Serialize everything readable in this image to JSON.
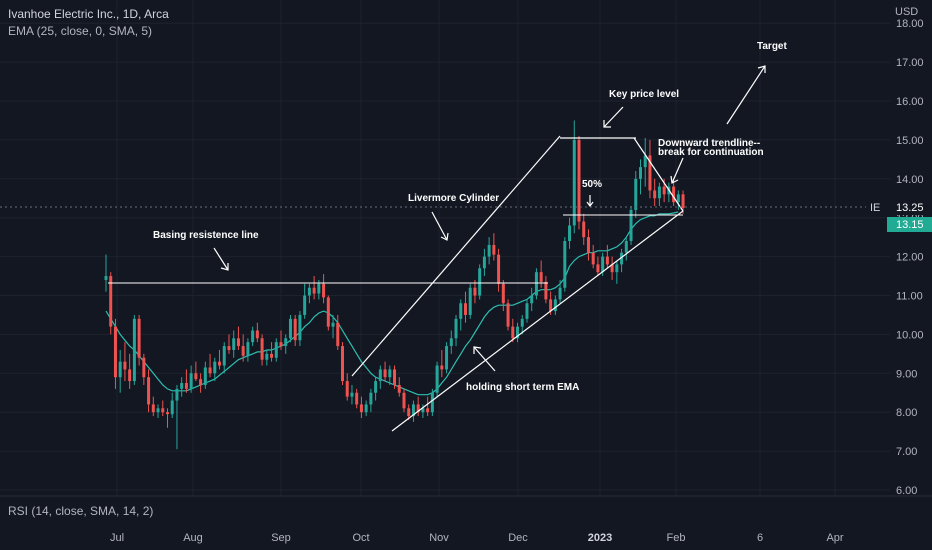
{
  "header": {
    "title": "Ivanhoe Electric Inc., 1D, Arca",
    "indicator": "EMA (25, close, 0, SMA, 5)",
    "rsi_label": "RSI (14, close, SMA, 14, 2)"
  },
  "price_axis": {
    "currency": "USD",
    "ticks": [
      "18.00",
      "17.00",
      "16.00",
      "15.00",
      "14.00",
      "13.00",
      "12.00",
      "11.00",
      "10.00",
      "9.00",
      "8.00",
      "7.00",
      "6.00"
    ],
    "symbol_tag": "IE",
    "last_price": "13.25",
    "ema_price": "13.15"
  },
  "colors": {
    "background": "#131722",
    "up": "#26a69a",
    "down": "#ef5350",
    "ema": "#2dbfb1",
    "drawings": "#ffffff",
    "grid": "#1e222d",
    "axis_text": "#b2b5be"
  },
  "chart_data": {
    "type": "candlestick",
    "symbol": "IE",
    "timeframe": "1D",
    "x_tick_labels": [
      "Jul",
      "Aug",
      "Sep",
      "Oct",
      "Nov",
      "Dec",
      "2023",
      "Feb",
      "6",
      "Apr"
    ],
    "ylim": [
      6.0,
      18.0
    ],
    "grid": true,
    "last_price": 13.25,
    "ema_value": 13.15,
    "annotations": [
      {
        "text": "Basing resistence line",
        "price_level": 11.35
      },
      {
        "text": "Livermore Cylinder"
      },
      {
        "text": "holding short term EMA"
      },
      {
        "text": "Key price level",
        "price_level": 15.05
      },
      {
        "text": "50%",
        "price_level": 13.0
      },
      {
        "text": "Downward trendline--"
      },
      {
        "text": "break for continuation"
      },
      {
        "text": "Target"
      }
    ],
    "candles": [
      {
        "o": 11.4,
        "h": 12.05,
        "l": 11.1,
        "c": 11.5
      },
      {
        "o": 11.5,
        "h": 11.6,
        "l": 10.0,
        "c": 10.2
      },
      {
        "o": 10.2,
        "h": 10.4,
        "l": 8.6,
        "c": 8.9
      },
      {
        "o": 8.9,
        "h": 9.6,
        "l": 8.5,
        "c": 9.3
      },
      {
        "o": 9.3,
        "h": 9.8,
        "l": 8.8,
        "c": 9.1
      },
      {
        "o": 9.1,
        "h": 9.5,
        "l": 8.6,
        "c": 8.8
      },
      {
        "o": 8.8,
        "h": 10.5,
        "l": 8.7,
        "c": 10.4
      },
      {
        "o": 10.4,
        "h": 10.5,
        "l": 9.2,
        "c": 9.4
      },
      {
        "o": 9.4,
        "h": 9.5,
        "l": 8.7,
        "c": 8.9
      },
      {
        "o": 8.9,
        "h": 9.1,
        "l": 8.0,
        "c": 8.2
      },
      {
        "o": 8.2,
        "h": 8.4,
        "l": 7.9,
        "c": 8.0
      },
      {
        "o": 8.0,
        "h": 8.2,
        "l": 7.85,
        "c": 8.1
      },
      {
        "o": 8.1,
        "h": 8.3,
        "l": 7.9,
        "c": 8.0
      },
      {
        "o": 8.0,
        "h": 8.1,
        "l": 7.6,
        "c": 7.95
      },
      {
        "o": 7.95,
        "h": 8.5,
        "l": 7.85,
        "c": 8.3
      },
      {
        "o": 8.3,
        "h": 8.7,
        "l": 7.05,
        "c": 8.6
      },
      {
        "o": 8.6,
        "h": 8.9,
        "l": 8.4,
        "c": 8.75
      },
      {
        "o": 8.75,
        "h": 9.1,
        "l": 8.5,
        "c": 8.6
      },
      {
        "o": 8.6,
        "h": 9.2,
        "l": 8.5,
        "c": 9.0
      },
      {
        "o": 9.0,
        "h": 9.3,
        "l": 8.8,
        "c": 8.85
      },
      {
        "o": 8.85,
        "h": 9.0,
        "l": 8.5,
        "c": 8.7
      },
      {
        "o": 8.7,
        "h": 9.3,
        "l": 8.6,
        "c": 9.15
      },
      {
        "o": 9.15,
        "h": 9.5,
        "l": 8.9,
        "c": 9.0
      },
      {
        "o": 9.0,
        "h": 9.4,
        "l": 8.8,
        "c": 9.3
      },
      {
        "o": 9.3,
        "h": 9.6,
        "l": 9.1,
        "c": 9.2
      },
      {
        "o": 9.2,
        "h": 9.8,
        "l": 9.0,
        "c": 9.7
      },
      {
        "o": 9.7,
        "h": 10.0,
        "l": 9.5,
        "c": 9.6
      },
      {
        "o": 9.6,
        "h": 10.1,
        "l": 9.4,
        "c": 9.9
      },
      {
        "o": 9.9,
        "h": 10.2,
        "l": 9.6,
        "c": 9.7
      },
      {
        "o": 9.7,
        "h": 10.0,
        "l": 9.3,
        "c": 9.45
      },
      {
        "o": 9.45,
        "h": 9.9,
        "l": 9.3,
        "c": 9.8
      },
      {
        "o": 9.8,
        "h": 10.2,
        "l": 9.7,
        "c": 10.1
      },
      {
        "o": 10.1,
        "h": 10.3,
        "l": 9.8,
        "c": 9.9
      },
      {
        "o": 9.9,
        "h": 10.0,
        "l": 9.2,
        "c": 9.35
      },
      {
        "o": 9.35,
        "h": 9.6,
        "l": 9.2,
        "c": 9.5
      },
      {
        "o": 9.5,
        "h": 9.8,
        "l": 9.3,
        "c": 9.4
      },
      {
        "o": 9.4,
        "h": 9.9,
        "l": 9.3,
        "c": 9.8
      },
      {
        "o": 9.8,
        "h": 10.1,
        "l": 9.6,
        "c": 9.7
      },
      {
        "o": 9.7,
        "h": 10.0,
        "l": 9.5,
        "c": 9.9
      },
      {
        "o": 9.9,
        "h": 10.5,
        "l": 9.8,
        "c": 10.4
      },
      {
        "o": 10.4,
        "h": 10.5,
        "l": 9.7,
        "c": 9.85
      },
      {
        "o": 9.85,
        "h": 10.6,
        "l": 9.7,
        "c": 10.5
      },
      {
        "o": 10.5,
        "h": 11.3,
        "l": 10.4,
        "c": 11.0
      },
      {
        "o": 11.0,
        "h": 11.3,
        "l": 10.8,
        "c": 11.2
      },
      {
        "o": 11.2,
        "h": 11.5,
        "l": 10.9,
        "c": 11.05
      },
      {
        "o": 11.05,
        "h": 11.4,
        "l": 10.9,
        "c": 11.3
      },
      {
        "o": 11.3,
        "h": 11.55,
        "l": 10.8,
        "c": 10.95
      },
      {
        "o": 10.95,
        "h": 11.0,
        "l": 10.1,
        "c": 10.2
      },
      {
        "o": 10.2,
        "h": 10.5,
        "l": 9.9,
        "c": 10.3
      },
      {
        "o": 10.3,
        "h": 10.5,
        "l": 9.6,
        "c": 9.7
      },
      {
        "o": 9.7,
        "h": 9.8,
        "l": 8.7,
        "c": 8.8
      },
      {
        "o": 8.8,
        "h": 9.0,
        "l": 8.3,
        "c": 8.4
      },
      {
        "o": 8.4,
        "h": 8.7,
        "l": 8.2,
        "c": 8.5
      },
      {
        "o": 8.5,
        "h": 8.6,
        "l": 8.1,
        "c": 8.2
      },
      {
        "o": 8.2,
        "h": 8.4,
        "l": 7.85,
        "c": 8.0
      },
      {
        "o": 8.0,
        "h": 8.3,
        "l": 7.9,
        "c": 8.2
      },
      {
        "o": 8.2,
        "h": 8.6,
        "l": 8.0,
        "c": 8.5
      },
      {
        "o": 8.5,
        "h": 8.9,
        "l": 8.3,
        "c": 8.8
      },
      {
        "o": 8.8,
        "h": 9.2,
        "l": 8.6,
        "c": 9.1
      },
      {
        "o": 9.1,
        "h": 9.3,
        "l": 8.8,
        "c": 8.9
      },
      {
        "o": 8.9,
        "h": 9.2,
        "l": 8.7,
        "c": 9.1
      },
      {
        "o": 9.1,
        "h": 9.2,
        "l": 8.6,
        "c": 8.7
      },
      {
        "o": 8.7,
        "h": 8.9,
        "l": 8.4,
        "c": 8.5
      },
      {
        "o": 8.5,
        "h": 8.6,
        "l": 8.0,
        "c": 8.1
      },
      {
        "o": 8.1,
        "h": 8.2,
        "l": 7.8,
        "c": 7.9
      },
      {
        "o": 7.9,
        "h": 8.3,
        "l": 7.75,
        "c": 8.2
      },
      {
        "o": 8.2,
        "h": 8.4,
        "l": 7.9,
        "c": 8.0
      },
      {
        "o": 8.0,
        "h": 8.2,
        "l": 7.85,
        "c": 8.1
      },
      {
        "o": 8.1,
        "h": 8.4,
        "l": 7.9,
        "c": 8.0
      },
      {
        "o": 8.0,
        "h": 8.6,
        "l": 7.9,
        "c": 8.5
      },
      {
        "o": 8.5,
        "h": 9.3,
        "l": 8.4,
        "c": 9.2
      },
      {
        "o": 9.2,
        "h": 9.6,
        "l": 8.9,
        "c": 9.1
      },
      {
        "o": 9.1,
        "h": 9.8,
        "l": 9.0,
        "c": 9.7
      },
      {
        "o": 9.7,
        "h": 10.1,
        "l": 9.5,
        "c": 9.9
      },
      {
        "o": 9.9,
        "h": 10.5,
        "l": 9.7,
        "c": 10.4
      },
      {
        "o": 10.4,
        "h": 10.9,
        "l": 10.1,
        "c": 10.8
      },
      {
        "o": 10.8,
        "h": 11.1,
        "l": 10.3,
        "c": 10.5
      },
      {
        "o": 10.5,
        "h": 11.3,
        "l": 10.4,
        "c": 11.2
      },
      {
        "o": 11.2,
        "h": 11.4,
        "l": 10.8,
        "c": 11.0
      },
      {
        "o": 11.0,
        "h": 11.8,
        "l": 10.9,
        "c": 11.7
      },
      {
        "o": 11.7,
        "h": 12.2,
        "l": 11.5,
        "c": 12.0
      },
      {
        "o": 12.0,
        "h": 12.5,
        "l": 11.8,
        "c": 12.3
      },
      {
        "o": 12.3,
        "h": 12.6,
        "l": 11.9,
        "c": 12.05
      },
      {
        "o": 12.05,
        "h": 12.2,
        "l": 11.1,
        "c": 11.3
      },
      {
        "o": 11.3,
        "h": 11.4,
        "l": 10.6,
        "c": 10.8
      },
      {
        "o": 10.8,
        "h": 10.9,
        "l": 10.1,
        "c": 10.2
      },
      {
        "o": 10.2,
        "h": 10.4,
        "l": 9.8,
        "c": 9.9
      },
      {
        "o": 9.9,
        "h": 10.3,
        "l": 9.8,
        "c": 10.2
      },
      {
        "o": 10.2,
        "h": 10.5,
        "l": 10.0,
        "c": 10.4
      },
      {
        "o": 10.4,
        "h": 10.9,
        "l": 10.3,
        "c": 10.8
      },
      {
        "o": 10.8,
        "h": 11.2,
        "l": 10.6,
        "c": 11.0
      },
      {
        "o": 11.0,
        "h": 11.7,
        "l": 10.9,
        "c": 11.6
      },
      {
        "o": 11.6,
        "h": 11.9,
        "l": 11.2,
        "c": 11.35
      },
      {
        "o": 11.35,
        "h": 11.5,
        "l": 10.8,
        "c": 10.9
      },
      {
        "o": 10.9,
        "h": 11.1,
        "l": 10.5,
        "c": 10.6
      },
      {
        "o": 10.6,
        "h": 11.0,
        "l": 10.5,
        "c": 10.9
      },
      {
        "o": 10.9,
        "h": 11.4,
        "l": 10.8,
        "c": 11.2
      },
      {
        "o": 11.2,
        "h": 12.5,
        "l": 11.1,
        "c": 12.4
      },
      {
        "o": 12.4,
        "h": 13.0,
        "l": 12.2,
        "c": 12.8
      },
      {
        "o": 12.8,
        "h": 15.5,
        "l": 12.6,
        "c": 15.0
      },
      {
        "o": 15.0,
        "h": 15.1,
        "l": 12.7,
        "c": 12.9
      },
      {
        "o": 12.9,
        "h": 13.1,
        "l": 12.3,
        "c": 12.5
      },
      {
        "o": 12.5,
        "h": 12.7,
        "l": 11.9,
        "c": 12.1
      },
      {
        "o": 12.1,
        "h": 12.3,
        "l": 11.7,
        "c": 11.8
      },
      {
        "o": 11.8,
        "h": 12.0,
        "l": 11.5,
        "c": 11.6
      },
      {
        "o": 11.6,
        "h": 12.1,
        "l": 11.5,
        "c": 12.0
      },
      {
        "o": 12.0,
        "h": 12.3,
        "l": 11.7,
        "c": 11.8
      },
      {
        "o": 11.8,
        "h": 12.0,
        "l": 11.4,
        "c": 11.6
      },
      {
        "o": 11.6,
        "h": 11.9,
        "l": 11.3,
        "c": 11.8
      },
      {
        "o": 11.8,
        "h": 12.2,
        "l": 11.6,
        "c": 12.1
      },
      {
        "o": 12.1,
        "h": 12.5,
        "l": 11.9,
        "c": 12.4
      },
      {
        "o": 12.4,
        "h": 13.3,
        "l": 12.3,
        "c": 13.2
      },
      {
        "o": 13.2,
        "h": 14.2,
        "l": 13.0,
        "c": 14.0
      },
      {
        "o": 14.0,
        "h": 14.5,
        "l": 13.6,
        "c": 14.3
      },
      {
        "o": 14.3,
        "h": 15.05,
        "l": 13.8,
        "c": 14.6
      },
      {
        "o": 14.6,
        "h": 15.0,
        "l": 13.5,
        "c": 13.7
      },
      {
        "o": 13.7,
        "h": 14.0,
        "l": 13.3,
        "c": 13.5
      },
      {
        "o": 13.5,
        "h": 13.9,
        "l": 13.3,
        "c": 13.8
      },
      {
        "o": 13.8,
        "h": 14.0,
        "l": 13.4,
        "c": 13.6
      },
      {
        "o": 13.6,
        "h": 13.9,
        "l": 13.4,
        "c": 13.8
      },
      {
        "o": 13.8,
        "h": 14.0,
        "l": 13.3,
        "c": 13.4
      },
      {
        "o": 13.4,
        "h": 13.7,
        "l": 13.2,
        "c": 13.6
      },
      {
        "o": 13.6,
        "h": 13.7,
        "l": 13.1,
        "c": 13.25
      }
    ],
    "ema": [
      10.6,
      10.4,
      10.2,
      10.0,
      9.85,
      9.7,
      9.6,
      9.45,
      9.3,
      9.15,
      9.0,
      8.85,
      8.7,
      8.6,
      8.55,
      8.55,
      8.55,
      8.55,
      8.6,
      8.65,
      8.7,
      8.75,
      8.8,
      8.85,
      8.95,
      9.05,
      9.15,
      9.25,
      9.35,
      9.4,
      9.45,
      9.5,
      9.55,
      9.55,
      9.6,
      9.6,
      9.65,
      9.7,
      9.75,
      9.85,
      9.95,
      10.05,
      10.2,
      10.3,
      10.45,
      10.55,
      10.6,
      10.55,
      10.45,
      10.3,
      10.1,
      9.9,
      9.7,
      9.5,
      9.3,
      9.15,
      9.0,
      8.9,
      8.85,
      8.8,
      8.75,
      8.7,
      8.65,
      8.6,
      8.55,
      8.5,
      8.45,
      8.45,
      8.45,
      8.5,
      8.6,
      8.75,
      8.9,
      9.1,
      9.3,
      9.5,
      9.7,
      9.85,
      10.05,
      10.25,
      10.45,
      10.6,
      10.7,
      10.75,
      10.75,
      10.75,
      10.75,
      10.8,
      10.85,
      10.9,
      11.0,
      11.1,
      11.15,
      11.15,
      11.15,
      11.2,
      11.3,
      11.45,
      11.75,
      11.9,
      12.0,
      12.05,
      12.1,
      12.1,
      12.15,
      12.15,
      12.15,
      12.2,
      12.25,
      12.35,
      12.5,
      12.7,
      12.85,
      12.95,
      13.0,
      13.05,
      13.05,
      13.1,
      13.1,
      13.1,
      13.12,
      13.15
    ]
  }
}
